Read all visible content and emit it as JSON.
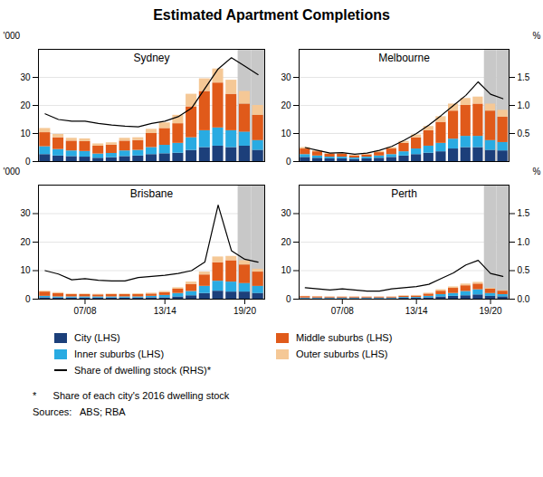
{
  "title": "Estimated Apartment Completions",
  "legend": "bottom",
  "annotations": [
    "*      Share of each city's 2016 dwelling stock",
    "Sources:   ABS; RBA"
  ],
  "chart_data": [
    {
      "type": "bar",
      "stacked": true,
      "title": "Sydney",
      "ylabel": "'000",
      "categories": [
        null,
        null,
        null,
        null,
        null,
        null,
        null,
        null,
        null,
        null,
        null,
        null,
        null,
        null,
        null,
        null,
        null
      ],
      "series": [
        {
          "name": "City (LHS)",
          "color": "#1c3f7a",
          "values": [
            2.5,
            2.0,
            1.8,
            1.6,
            1.2,
            1.4,
            1.8,
            2.0,
            2.5,
            2.8,
            3.0,
            4.0,
            5.0,
            5.5,
            5.0,
            5.5,
            4.0
          ]
        },
        {
          "name": "Inner suburbs (LHS)",
          "color": "#29abe2",
          "values": [
            2.8,
            2.3,
            2.0,
            2.0,
            1.5,
            1.5,
            2.0,
            2.0,
            2.5,
            3.0,
            3.5,
            4.5,
            6.0,
            6.5,
            6.0,
            5.0,
            3.5
          ]
        },
        {
          "name": "Middle suburbs (LHS)",
          "color": "#e05a1a",
          "values": [
            5.0,
            4.2,
            3.5,
            3.5,
            2.8,
            3.0,
            3.5,
            3.5,
            5.0,
            6.0,
            7.0,
            11.0,
            14.0,
            16.0,
            13.0,
            10.0,
            9.0
          ]
        },
        {
          "name": "Outer suburbs (LHS)",
          "color": "#f5c896",
          "values": [
            1.5,
            1.2,
            1.0,
            1.0,
            0.8,
            0.8,
            1.0,
            1.0,
            1.5,
            2.0,
            3.0,
            4.5,
            4.5,
            5.0,
            5.0,
            4.5,
            3.5
          ]
        },
        {
          "name": "Share of dwelling stock (RHS)*",
          "type": "line",
          "axis": "y2",
          "color": "#000000",
          "values": [
            0.85,
            0.75,
            0.72,
            0.72,
            0.68,
            0.65,
            0.63,
            0.62,
            0.68,
            0.72,
            0.8,
            0.95,
            1.3,
            1.65,
            1.85,
            1.7,
            1.55
          ]
        }
      ],
      "ylim": [
        0,
        40
      ],
      "yticks": [
        0,
        10,
        20,
        30
      ],
      "y2lim": [
        0,
        2
      ],
      "grid": true,
      "shaded": {
        "positions": [
          15,
          16
        ],
        "color": "#c8c8c8"
      }
    },
    {
      "type": "bar",
      "stacked": true,
      "title": "Melbourne",
      "y2label": "%",
      "categories": [
        null,
        null,
        null,
        null,
        null,
        null,
        null,
        null,
        null,
        null,
        null,
        null,
        null,
        null,
        null,
        null,
        null
      ],
      "series": [
        {
          "name": "City (LHS)",
          "color": "#1c3f7a",
          "values": [
            1.5,
            1.2,
            1.0,
            1.0,
            0.8,
            1.0,
            1.2,
            1.5,
            2.0,
            2.5,
            3.0,
            3.5,
            4.5,
            5.0,
            5.0,
            4.0,
            3.8
          ]
        },
        {
          "name": "Inner suburbs (LHS)",
          "color": "#29abe2",
          "values": [
            1.0,
            0.8,
            0.6,
            0.6,
            0.5,
            0.6,
            0.8,
            1.0,
            1.5,
            2.0,
            2.5,
            3.0,
            3.5,
            4.0,
            4.0,
            3.5,
            3.0
          ]
        },
        {
          "name": "Middle suburbs (LHS)",
          "color": "#e05a1a",
          "values": [
            2.0,
            1.5,
            1.0,
            1.0,
            0.7,
            0.8,
            1.2,
            2.0,
            3.0,
            4.0,
            5.5,
            7.5,
            10.0,
            11.0,
            11.5,
            10.5,
            9.0
          ]
        },
        {
          "name": "Outer suburbs (LHS)",
          "color": "#f5c896",
          "values": [
            0.5,
            0.4,
            0.3,
            0.3,
            0.3,
            0.3,
            0.4,
            0.5,
            0.7,
            1.0,
            1.5,
            2.0,
            2.5,
            2.5,
            2.5,
            2.5,
            2.5
          ]
        },
        {
          "name": "Share of dwelling stock (RHS)*",
          "type": "line",
          "axis": "y2",
          "color": "#000000",
          "values": [
            0.25,
            0.2,
            0.15,
            0.16,
            0.13,
            0.15,
            0.2,
            0.27,
            0.38,
            0.5,
            0.65,
            0.82,
            1.0,
            1.18,
            1.42,
            1.2,
            1.12
          ]
        }
      ],
      "ylim": [
        0,
        40
      ],
      "yticks": [
        0,
        10,
        20,
        30
      ],
      "y2lim": [
        0,
        2
      ],
      "y2ticks": [
        0.5,
        {
          "value": 1,
          "label": "1.0"
        },
        1.5
      ],
      "grid": true,
      "shaded": {
        "positions": [
          15,
          16
        ],
        "color": "#c8c8c8"
      }
    },
    {
      "type": "bar",
      "stacked": true,
      "title": "Brisbane",
      "ylabel": "'000",
      "categories": [
        null,
        null,
        null,
        "07/08",
        null,
        null,
        null,
        null,
        null,
        "13/14",
        null,
        null,
        null,
        null,
        null,
        "19/20",
        null
      ],
      "series": [
        {
          "name": "City (LHS)",
          "color": "#1c3f7a",
          "values": [
            0.5,
            0.4,
            0.4,
            0.4,
            0.4,
            0.4,
            0.4,
            0.4,
            0.5,
            0.5,
            0.8,
            1.2,
            2.0,
            2.8,
            2.5,
            2.5,
            2.0
          ]
        },
        {
          "name": "Inner suburbs (LHS)",
          "color": "#29abe2",
          "values": [
            0.5,
            0.4,
            0.4,
            0.4,
            0.4,
            0.4,
            0.4,
            0.4,
            0.5,
            0.8,
            1.2,
            1.5,
            2.5,
            3.5,
            3.5,
            3.0,
            2.5
          ]
        },
        {
          "name": "Middle suburbs (LHS)",
          "color": "#e05a1a",
          "values": [
            1.5,
            1.2,
            0.8,
            0.8,
            0.7,
            0.8,
            0.8,
            0.8,
            0.8,
            1.0,
            1.5,
            2.5,
            4.0,
            6.5,
            7.5,
            6.5,
            5.0
          ]
        },
        {
          "name": "Outer suburbs (LHS)",
          "color": "#f5c896",
          "values": [
            0.3,
            0.3,
            0.2,
            0.2,
            0.2,
            0.2,
            0.2,
            0.3,
            0.3,
            0.4,
            0.5,
            0.8,
            1.0,
            2.0,
            1.5,
            1.5,
            1.0
          ]
        },
        {
          "name": "Share of dwelling stock (RHS)*",
          "type": "line",
          "axis": "y2",
          "color": "#000000",
          "values": [
            0.5,
            0.44,
            0.34,
            0.36,
            0.33,
            0.32,
            0.32,
            0.38,
            0.4,
            0.42,
            0.45,
            0.5,
            0.65,
            1.65,
            0.85,
            0.7,
            0.65
          ]
        }
      ],
      "ylim": [
        0,
        40
      ],
      "yticks": [
        0,
        10,
        20,
        30
      ],
      "y2lim": [
        0,
        2
      ],
      "grid": true,
      "shaded": {
        "positions": [
          15,
          16
        ],
        "color": "#c8c8c8"
      }
    },
    {
      "type": "bar",
      "stacked": true,
      "title": "Perth",
      "y2label": "%",
      "categories": [
        null,
        null,
        null,
        "07/08",
        null,
        null,
        null,
        null,
        null,
        "13/14",
        null,
        null,
        null,
        null,
        null,
        "19/20",
        null
      ],
      "series": [
        {
          "name": "City (LHS)",
          "color": "#1c3f7a",
          "values": [
            0.2,
            0.2,
            0.2,
            0.2,
            0.2,
            0.2,
            0.2,
            0.2,
            0.3,
            0.3,
            0.5,
            0.8,
            1.0,
            1.2,
            1.5,
            1.0,
            0.8
          ]
        },
        {
          "name": "Inner suburbs (LHS)",
          "color": "#29abe2",
          "values": [
            0.2,
            0.2,
            0.2,
            0.2,
            0.2,
            0.2,
            0.2,
            0.2,
            0.3,
            0.3,
            0.5,
            0.8,
            1.0,
            1.5,
            1.8,
            1.0,
            0.8
          ]
        },
        {
          "name": "Middle suburbs (LHS)",
          "color": "#e05a1a",
          "values": [
            0.5,
            0.4,
            0.3,
            0.3,
            0.3,
            0.3,
            0.3,
            0.3,
            0.4,
            0.5,
            0.8,
            1.2,
            1.8,
            2.0,
            2.0,
            1.5,
            1.2
          ]
        },
        {
          "name": "Outer suburbs (LHS)",
          "color": "#f5c896",
          "values": [
            0.1,
            0.1,
            0.1,
            0.1,
            0.1,
            0.1,
            0.1,
            0.1,
            0.2,
            0.2,
            0.3,
            0.5,
            0.5,
            0.6,
            0.6,
            0.3,
            0.2
          ]
        },
        {
          "name": "Share of dwelling stock (RHS)*",
          "type": "line",
          "axis": "y2",
          "color": "#000000",
          "values": [
            0.2,
            0.18,
            0.16,
            0.18,
            0.16,
            0.14,
            0.14,
            0.18,
            0.2,
            0.22,
            0.26,
            0.36,
            0.46,
            0.6,
            0.68,
            0.45,
            0.4
          ]
        }
      ],
      "ylim": [
        0,
        40
      ],
      "yticks": [
        0,
        10,
        20,
        30
      ],
      "y2lim": [
        0,
        2
      ],
      "y2ticks": [
        {
          "value": 0,
          "label": "0.0"
        },
        0.5,
        {
          "value": 1,
          "label": "1.0"
        },
        1.5
      ],
      "grid": true,
      "shaded": {
        "positions": [
          15,
          16
        ],
        "color": "#c8c8c8"
      }
    }
  ]
}
